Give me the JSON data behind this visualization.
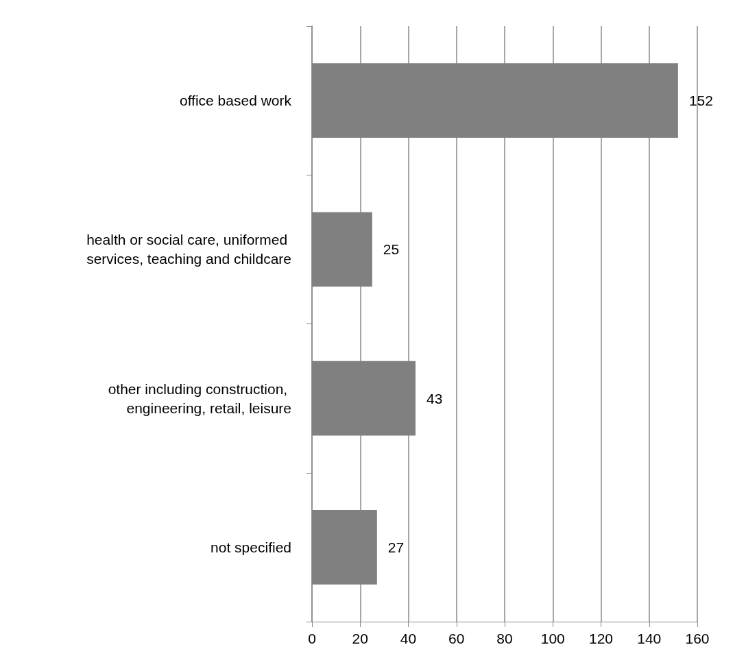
{
  "chart_data": {
    "type": "bar",
    "orientation": "horizontal",
    "categories": [
      "office based work",
      "health or social care, uniformed services, teaching and childcare",
      "other including construction, engineering, retail, leisure",
      "not specified"
    ],
    "values": [
      152,
      25,
      43,
      27
    ],
    "color": "#808080",
    "xlim": [
      0,
      160
    ],
    "xticks": [
      0,
      20,
      40,
      60,
      80,
      100,
      120,
      140,
      160
    ],
    "grid": "x",
    "data_labels": true
  }
}
